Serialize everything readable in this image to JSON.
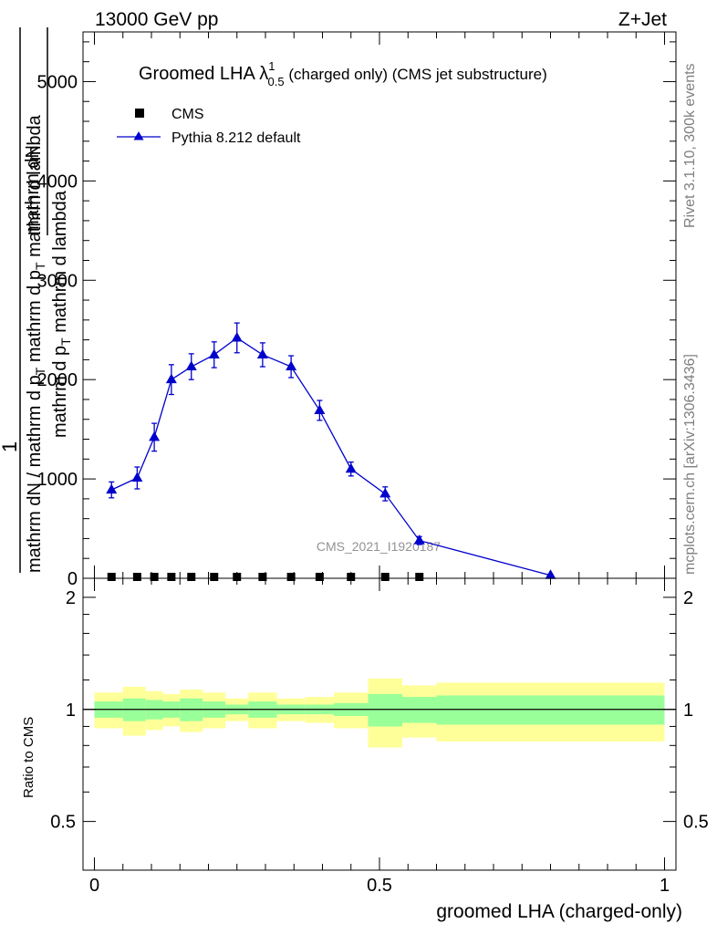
{
  "header": {
    "left": "13000 GeV pp",
    "right": "Z+Jet"
  },
  "side": {
    "rivet": "Rivet 3.1.10,  300k events",
    "mcplots": "mcplots.cern.ch [arXiv:1306.3436]"
  },
  "plot_title": {
    "main": "Groomed LHA ",
    "lambda": "λ",
    "sup": "1",
    "sub": "0.5",
    "rest": "  (charged only) (CMS jet substructure)"
  },
  "watermark": "CMS_2021_I1920187",
  "legend": {
    "data_label": "CMS",
    "mc_label": "Pythia 8.212 default"
  },
  "y_label": {
    "line1_num": "mathrm dN",
    "line1_den": "mathrm d p",
    "line1_den_sub": "T",
    "line1_den_rest": " mathrm d lambda",
    "prefix": "1",
    "line2": "mathrm dN / mathrm d p",
    "line2_sub": "T",
    "line2_rest": " mathrm d p",
    "line2_sub2": "T",
    "line2_tail": " mathrm d lambda"
  },
  "ratio_ylabel": "Ratio to CMS",
  "x_label": "groomed LHA (charged-only)",
  "colors": {
    "mc": "#0000cc",
    "band_inner": "#99ff99",
    "band_outer": "#ffff99",
    "data": "#000000"
  },
  "chart_data": [
    {
      "type": "line",
      "title": "Groomed LHA λ^1_0.5 (charged only) (CMS jet substructure)",
      "xlim": [
        -0.02,
        1.02
      ],
      "ylim": [
        0,
        5500
      ],
      "y_ticks": [
        0,
        1000,
        2000,
        3000,
        4000,
        5000
      ],
      "y_tick_labels": [
        "0",
        "1000",
        "2000",
        "3000",
        "4000",
        "5000"
      ],
      "series": [
        {
          "name": "CMS",
          "x": [
            0.03,
            0.075,
            0.105,
            0.135,
            0.17,
            0.21,
            0.25,
            0.295,
            0.345,
            0.395,
            0.45,
            0.51,
            0.57
          ],
          "y": [
            0,
            0,
            0,
            0,
            0,
            0,
            0,
            0,
            0,
            0,
            0,
            0,
            0
          ]
        },
        {
          "name": "Pythia 8.212 default",
          "x": [
            0.03,
            0.075,
            0.105,
            0.135,
            0.17,
            0.21,
            0.25,
            0.295,
            0.345,
            0.395,
            0.45,
            0.51,
            0.57,
            0.8
          ],
          "y": [
            890,
            1010,
            1420,
            2000,
            2130,
            2250,
            2420,
            2250,
            2130,
            1690,
            1100,
            850,
            380,
            30
          ],
          "yerr": [
            80,
            110,
            140,
            150,
            130,
            130,
            150,
            120,
            110,
            100,
            70,
            70,
            40,
            10
          ]
        }
      ]
    },
    {
      "type": "area",
      "ylabel": "Ratio to CMS",
      "xlabel": "groomed LHA (charged-only)",
      "xlim": [
        -0.02,
        1.02
      ],
      "ylim": [
        0.37,
        2.25
      ],
      "x_ticks": [
        0,
        0.5,
        1
      ],
      "x_tick_labels": [
        "0",
        "0.5",
        "1"
      ],
      "y_ticks": [
        0.5,
        1,
        2
      ],
      "y_tick_labels": [
        "0.5",
        "1",
        "2"
      ],
      "bin_edges": [
        0,
        0.05,
        0.09,
        0.12,
        0.15,
        0.19,
        0.23,
        0.27,
        0.32,
        0.37,
        0.42,
        0.48,
        0.54,
        0.6,
        1.0
      ],
      "band_inner": {
        "lo": [
          0.95,
          0.93,
          0.94,
          0.95,
          0.93,
          0.95,
          0.97,
          0.95,
          0.97,
          0.97,
          0.96,
          0.9,
          0.92,
          0.91
        ],
        "hi": [
          1.05,
          1.07,
          1.06,
          1.05,
          1.07,
          1.05,
          1.03,
          1.05,
          1.03,
          1.03,
          1.04,
          1.1,
          1.08,
          1.09
        ]
      },
      "band_outer": {
        "lo": [
          0.89,
          0.85,
          0.88,
          0.9,
          0.87,
          0.89,
          0.93,
          0.89,
          0.93,
          0.92,
          0.89,
          0.79,
          0.84,
          0.82
        ],
        "hi": [
          1.11,
          1.15,
          1.12,
          1.1,
          1.13,
          1.11,
          1.07,
          1.11,
          1.07,
          1.08,
          1.11,
          1.21,
          1.16,
          1.18
        ]
      },
      "reference": 1
    }
  ]
}
